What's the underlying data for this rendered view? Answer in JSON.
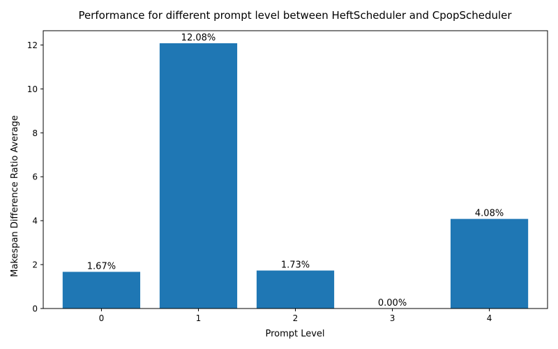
{
  "chart_data": {
    "type": "bar",
    "title": "Performance for different prompt level between HeftScheduler and CpopScheduler",
    "xlabel": "Prompt Level",
    "ylabel": "Makespan Difference Ratio Average",
    "categories": [
      "0",
      "1",
      "2",
      "3",
      "4"
    ],
    "values": [
      1.67,
      12.08,
      1.73,
      0.0,
      4.08
    ],
    "data_labels": [
      "1.67%",
      "12.08%",
      "1.73%",
      "0.00%",
      "4.08%"
    ],
    "ylim": [
      0,
      12.65
    ],
    "yticks": [
      0,
      2,
      4,
      6,
      8,
      10,
      12
    ],
    "ytick_labels": [
      "0",
      "2",
      "4",
      "6",
      "8",
      "10",
      "12"
    ],
    "grid": false,
    "bar_color": "#1f77b4"
  }
}
